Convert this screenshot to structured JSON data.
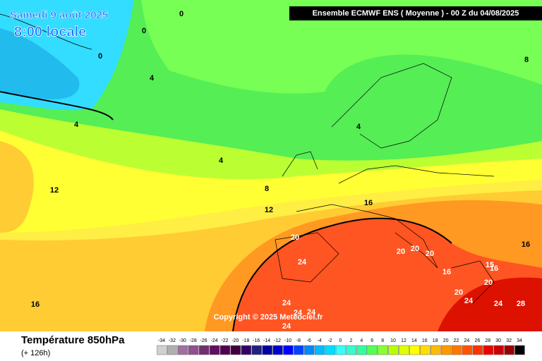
{
  "header": {
    "date": "Samedi 9 août 2025",
    "time": "8:00 locale",
    "model": "Ensemble ECMWF ENS  ( Moyenne )  -  00 Z du 04/08/2025"
  },
  "map": {
    "copyright": "Copyright © 2025 Meteociel.fr",
    "contour_labels": [
      0,
      0,
      0,
      4,
      4,
      4,
      4,
      8,
      8,
      12,
      12,
      16,
      20,
      24,
      20,
      20,
      20,
      16,
      16,
      15,
      16,
      20,
      20,
      24,
      24,
      28,
      24,
      24,
      24,
      24,
      16
    ]
  },
  "legend": {
    "title": "Température 850hPa",
    "subtitle": "(+ 126h)",
    "values": [
      -34,
      -32,
      -30,
      -28,
      -26,
      -24,
      -22,
      -20,
      -18,
      -16,
      -14,
      -12,
      -10,
      -8,
      -6,
      -4,
      -2,
      0,
      2,
      4,
      6,
      8,
      10,
      12,
      14,
      16,
      18,
      20,
      22,
      24,
      26,
      28,
      30,
      32,
      34
    ],
    "colors": [
      "#d0d0d0",
      "#b0b0b0",
      "#a070a0",
      "#905090",
      "#703070",
      "#601060",
      "#500050",
      "#400040",
      "#330066",
      "#202080",
      "#0000a0",
      "#0000cc",
      "#0000ff",
      "#0044ff",
      "#0088ff",
      "#00bbff",
      "#00ddff",
      "#33ffff",
      "#33ffcc",
      "#33ff99",
      "#55ff55",
      "#88ff33",
      "#bbff00",
      "#ddff00",
      "#ffff00",
      "#ffdd00",
      "#ffbb00",
      "#ff9900",
      "#ff7700",
      "#ff5500",
      "#ff3300",
      "#ee0000",
      "#cc0000",
      "#990000",
      "#000000"
    ]
  }
}
